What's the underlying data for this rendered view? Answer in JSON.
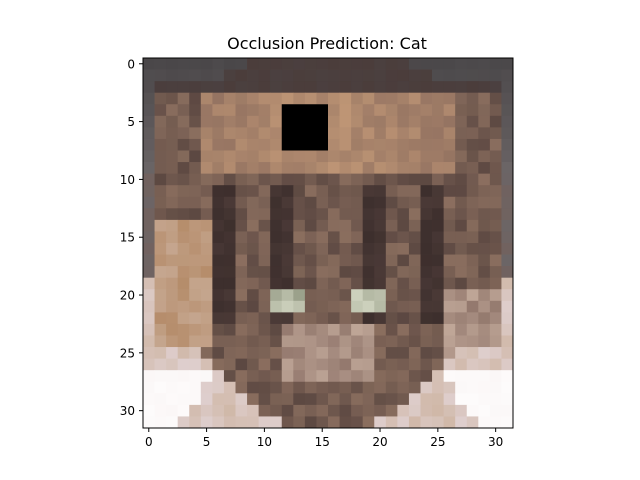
{
  "figure": {
    "title": "Occlusion Prediction: Cat"
  },
  "image": {
    "description_label": "Pixelated cat face with occlusion patch",
    "grid_size": [
      32,
      32
    ],
    "occlusion_patch": {
      "row_start": 4,
      "row_end": 7,
      "col_start": 12,
      "col_end": 15,
      "color": "#000000"
    },
    "palette": {
      "bg_top": "#4a4749",
      "bg_mid": "#6b6566",
      "fur_dark": "#4b3a37",
      "fur_mid": "#7a5e55",
      "fur_light": "#a0806c",
      "fur_tan": "#b58c6a",
      "forehead": "#c49a78",
      "cheek_light": "#d0b8a8",
      "bottom_white": "#fbf7f7"
    }
  },
  "axes": {
    "y_ticks": [
      0,
      5,
      10,
      15,
      20,
      25,
      30
    ],
    "x_ticks": [
      0,
      5,
      10,
      15,
      20,
      25,
      30
    ],
    "y_tick_labels": [
      "0",
      "5",
      "10",
      "15",
      "20",
      "25",
      "30"
    ],
    "x_tick_labels": [
      "0",
      "5",
      "10",
      "15",
      "20",
      "25",
      "30"
    ],
    "xlim": [
      -0.5,
      31.5
    ],
    "ylim": [
      31.5,
      -0.5
    ]
  }
}
